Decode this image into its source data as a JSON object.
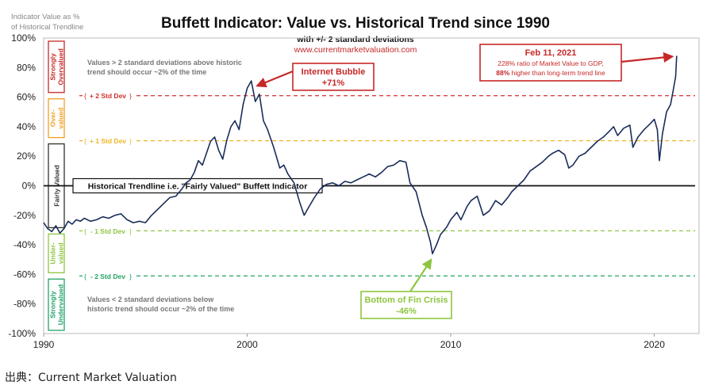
{
  "source_label": "出典：Current Market Valuation",
  "chart_data": {
    "type": "line",
    "title": "Buffett Indicator: Value vs. Historical Trend since 1990",
    "subtitle": "with +/- 2 standard deviations",
    "url": "www.currentmarketvaluation.com",
    "ylabel": "Indicator Value as % of Historical Trendline",
    "ylabel_lines": [
      "Indicator Value as %",
      "of Historical Trendline"
    ],
    "xlim": [
      1990,
      2022.2
    ],
    "ylim": [
      -100,
      100
    ],
    "x_ticks": [
      1990,
      2000,
      2010,
      2020
    ],
    "y_ticks": [
      {
        "value": 100,
        "label": "100%"
      },
      {
        "value": 80,
        "label": "80%"
      },
      {
        "value": 60,
        "label": "60%"
      },
      {
        "value": 40,
        "label": "40%"
      },
      {
        "value": 20,
        "label": "20%"
      },
      {
        "value": 0,
        "label": "0%"
      },
      {
        "value": -20,
        "label": "-20%"
      },
      {
        "value": -40,
        "label": "-40%"
      },
      {
        "value": -60,
        "label": "-60%"
      },
      {
        "value": -80,
        "label": "-80%"
      },
      {
        "value": -100,
        "label": "-100%"
      }
    ],
    "grid": false,
    "reference_lines": [
      {
        "label": "+ 2 Std Dev",
        "value": 61,
        "color": "#d32f2f",
        "style": "dashed"
      },
      {
        "label": "+ 1 Std Dev",
        "value": 30.5,
        "color": "#f0b428",
        "style": "dashed"
      },
      {
        "label": "Historical Trendline i.e. \"Fairly Valued\" Buffett Indicator",
        "value": 0,
        "color": "#111111",
        "style": "solid"
      },
      {
        "label": "- 1 Std Dev",
        "value": -30.5,
        "color": "#8dc63f",
        "style": "dashed"
      },
      {
        "label": "- 2 Std Dev",
        "value": -61,
        "color": "#21a366",
        "style": "dashed"
      }
    ],
    "zones": [
      {
        "label_lines": [
          "Strongly",
          "Overvalued"
        ],
        "color": "#c62828",
        "from": 61,
        "to": 100
      },
      {
        "label_lines": [
          "Over-",
          "valued"
        ],
        "color": "#f0a020",
        "from": 30.5,
        "to": 61
      },
      {
        "label_lines": [
          "Fairly Valued"
        ],
        "color": "#333333",
        "from": -30.5,
        "to": 30.5
      },
      {
        "label_lines": [
          "Under-",
          "valued"
        ],
        "color": "#8dc63f",
        "from": -61,
        "to": -30.5
      },
      {
        "label_lines": [
          "Strongly",
          "Undervalued"
        ],
        "color": "#21a366",
        "from": -100,
        "to": -61
      }
    ],
    "notes": [
      {
        "lines": [
          "Values > 2 standard deviations above historic",
          "trend should occur ~2% of the time"
        ]
      },
      {
        "lines": [
          "Values < 2 standard deviations below",
          "historic trend should occur ~2% of the time"
        ]
      }
    ],
    "annotations": [
      {
        "title": "Internet Bubble",
        "value_text": "+71%",
        "x": 2000.2,
        "y": 71,
        "color": "#c62828"
      },
      {
        "title": "Bottom of Fin Crisis",
        "value_text": "-46%",
        "x": 2009.1,
        "y": -46,
        "color": "#8dc63f"
      },
      {
        "title": "Feb 11, 2021",
        "lines": [
          "228% ratio of Market Value to GDP,"
        ],
        "emphasis": "88%",
        "emphasis_rest": " higher than long-term trend line",
        "x": 2021.1,
        "y": 88,
        "color": "#c62828"
      }
    ],
    "series": [
      {
        "color": "#1a2d5a",
        "points": [
          [
            1990.0,
            -25
          ],
          [
            1990.2,
            -29
          ],
          [
            1990.4,
            -31
          ],
          [
            1990.6,
            -27
          ],
          [
            1990.8,
            -32
          ],
          [
            1991.0,
            -29
          ],
          [
            1991.2,
            -24
          ],
          [
            1991.4,
            -26
          ],
          [
            1991.6,
            -23
          ],
          [
            1991.8,
            -24
          ],
          [
            1992.0,
            -22
          ],
          [
            1992.3,
            -24
          ],
          [
            1992.6,
            -23
          ],
          [
            1992.9,
            -21
          ],
          [
            1993.2,
            -22
          ],
          [
            1993.5,
            -20
          ],
          [
            1993.8,
            -19
          ],
          [
            1994.1,
            -23
          ],
          [
            1994.4,
            -25
          ],
          [
            1994.7,
            -24
          ],
          [
            1995.0,
            -25
          ],
          [
            1995.3,
            -20
          ],
          [
            1995.6,
            -16
          ],
          [
            1995.9,
            -12
          ],
          [
            1996.2,
            -8
          ],
          [
            1996.5,
            -7
          ],
          [
            1996.8,
            -2
          ],
          [
            1997.0,
            2
          ],
          [
            1997.2,
            4
          ],
          [
            1997.4,
            9
          ],
          [
            1997.6,
            17
          ],
          [
            1997.8,
            14
          ],
          [
            1998.0,
            22
          ],
          [
            1998.2,
            30
          ],
          [
            1998.4,
            33
          ],
          [
            1998.6,
            24
          ],
          [
            1998.8,
            18
          ],
          [
            1999.0,
            31
          ],
          [
            1999.2,
            40
          ],
          [
            1999.4,
            44
          ],
          [
            1999.6,
            38
          ],
          [
            1999.8,
            55
          ],
          [
            2000.0,
            66
          ],
          [
            2000.2,
            71
          ],
          [
            2000.4,
            57
          ],
          [
            2000.6,
            62
          ],
          [
            2000.8,
            44
          ],
          [
            2001.0,
            38
          ],
          [
            2001.3,
            26
          ],
          [
            2001.6,
            12
          ],
          [
            2001.8,
            14
          ],
          [
            2002.0,
            8
          ],
          [
            2002.3,
            2
          ],
          [
            2002.6,
            -12
          ],
          [
            2002.8,
            -20
          ],
          [
            2003.0,
            -15
          ],
          [
            2003.3,
            -8
          ],
          [
            2003.6,
            -2
          ],
          [
            2003.9,
            1
          ],
          [
            2004.2,
            2
          ],
          [
            2004.5,
            0
          ],
          [
            2004.8,
            3
          ],
          [
            2005.1,
            2
          ],
          [
            2005.4,
            4
          ],
          [
            2005.7,
            6
          ],
          [
            2006.0,
            8
          ],
          [
            2006.3,
            6
          ],
          [
            2006.6,
            9
          ],
          [
            2006.9,
            13
          ],
          [
            2007.2,
            14
          ],
          [
            2007.5,
            17
          ],
          [
            2007.8,
            16
          ],
          [
            2008.0,
            2
          ],
          [
            2008.3,
            -4
          ],
          [
            2008.6,
            -20
          ],
          [
            2008.8,
            -28
          ],
          [
            2009.0,
            -38
          ],
          [
            2009.1,
            -46
          ],
          [
            2009.3,
            -40
          ],
          [
            2009.5,
            -33
          ],
          [
            2009.8,
            -28
          ],
          [
            2010.0,
            -23
          ],
          [
            2010.3,
            -18
          ],
          [
            2010.5,
            -23
          ],
          [
            2010.8,
            -14
          ],
          [
            2011.0,
            -10
          ],
          [
            2011.3,
            -7
          ],
          [
            2011.6,
            -20
          ],
          [
            2011.9,
            -17
          ],
          [
            2012.2,
            -10
          ],
          [
            2012.5,
            -13
          ],
          [
            2012.8,
            -8
          ],
          [
            2013.0,
            -4
          ],
          [
            2013.3,
            0
          ],
          [
            2013.6,
            4
          ],
          [
            2013.9,
            10
          ],
          [
            2014.2,
            13
          ],
          [
            2014.5,
            16
          ],
          [
            2014.8,
            20
          ],
          [
            2015.0,
            22
          ],
          [
            2015.3,
            24
          ],
          [
            2015.6,
            21
          ],
          [
            2015.8,
            12
          ],
          [
            2016.0,
            14
          ],
          [
            2016.3,
            20
          ],
          [
            2016.6,
            22
          ],
          [
            2016.9,
            26
          ],
          [
            2017.2,
            30
          ],
          [
            2017.5,
            33
          ],
          [
            2017.8,
            37
          ],
          [
            2018.0,
            40
          ],
          [
            2018.2,
            34
          ],
          [
            2018.5,
            39
          ],
          [
            2018.8,
            41
          ],
          [
            2018.95,
            26
          ],
          [
            2019.2,
            33
          ],
          [
            2019.5,
            38
          ],
          [
            2019.8,
            42
          ],
          [
            2020.0,
            45
          ],
          [
            2020.15,
            38
          ],
          [
            2020.25,
            17
          ],
          [
            2020.4,
            35
          ],
          [
            2020.6,
            50
          ],
          [
            2020.8,
            55
          ],
          [
            2020.95,
            66
          ],
          [
            2021.05,
            74
          ],
          [
            2021.1,
            88
          ]
        ]
      }
    ]
  }
}
